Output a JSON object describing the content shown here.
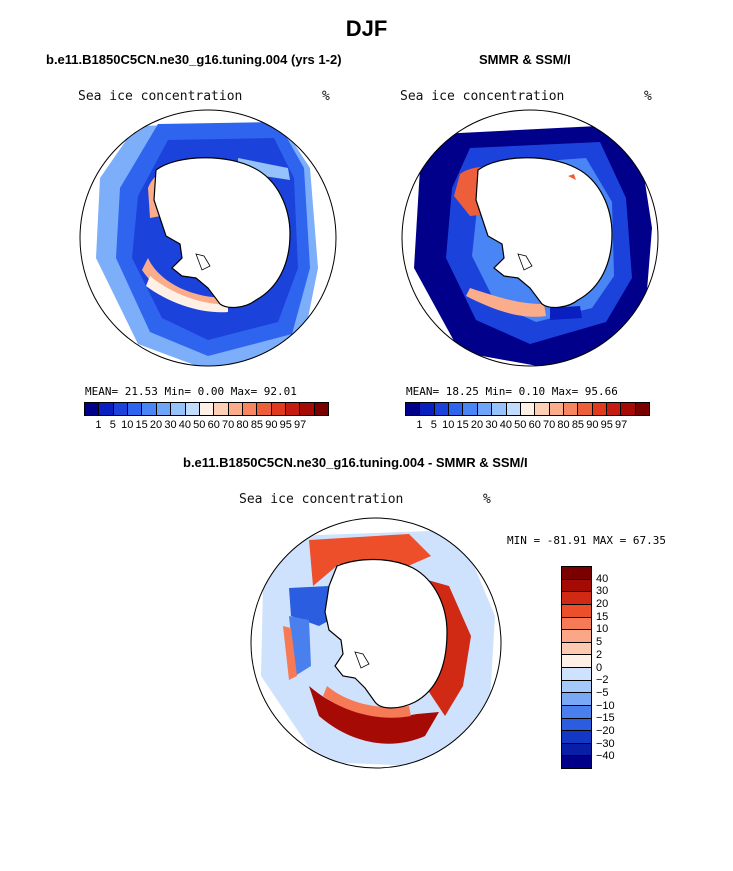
{
  "season": "DJF",
  "colors": {
    "sic_scale": [
      "#00008b",
      "#0a1fc0",
      "#1c42dc",
      "#2f64ee",
      "#4a85f5",
      "#6ea5f8",
      "#95c2fb",
      "#c2dcfd",
      "#fff0e6",
      "#fdd0b6",
      "#fbac8b",
      "#f58660",
      "#ed5f3b",
      "#e0391e",
      "#c61b10",
      "#a50b04",
      "#7a0000"
    ],
    "diff_scale": [
      "#7a0000",
      "#a50b04",
      "#d02a14",
      "#ec4f2a",
      "#f57a55",
      "#fba787",
      "#fdc9b0",
      "#fff0e6",
      "#cfe2fd",
      "#a6c9fb",
      "#7aa8f5",
      "#4a80ee",
      "#2a5ddf",
      "#1438c6",
      "#081ea6",
      "#00008b"
    ],
    "land": "#ffffff",
    "coast": "#000000"
  },
  "panels": {
    "model": {
      "title": "b.e11.B1850C5CN.ne30_g16.tuning.004 (yrs 1-2)",
      "variable": "Sea ice concentration",
      "units": "%",
      "stats": "MEAN=   21.53  Min=    0.00  Max=   92.01"
    },
    "obs": {
      "title": "SMMR & SSM/I",
      "variable": "Sea ice concentration",
      "units": "%",
      "stats": "MEAN=   18.25  Min=    0.10  Max=   95.66"
    },
    "diff": {
      "title": "b.e11.B1850C5CN.ne30_g16.tuning.004 - SMMR & SSM/I",
      "variable": "Sea ice concentration",
      "units": "%",
      "stats": "MIN = -81.91 MAX =  67.35"
    }
  },
  "sic_colorbar": {
    "labels": [
      "1",
      "5",
      "10",
      "15",
      "20",
      "30",
      "40",
      "50",
      "60",
      "70",
      "80",
      "85",
      "90",
      "95",
      "97"
    ]
  },
  "diff_colorbar": {
    "labels": [
      "40",
      "30",
      "20",
      "15",
      "10",
      "5",
      "2",
      "0",
      "−2",
      "−5",
      "−10",
      "−15",
      "−20",
      "−30",
      "−40"
    ]
  }
}
